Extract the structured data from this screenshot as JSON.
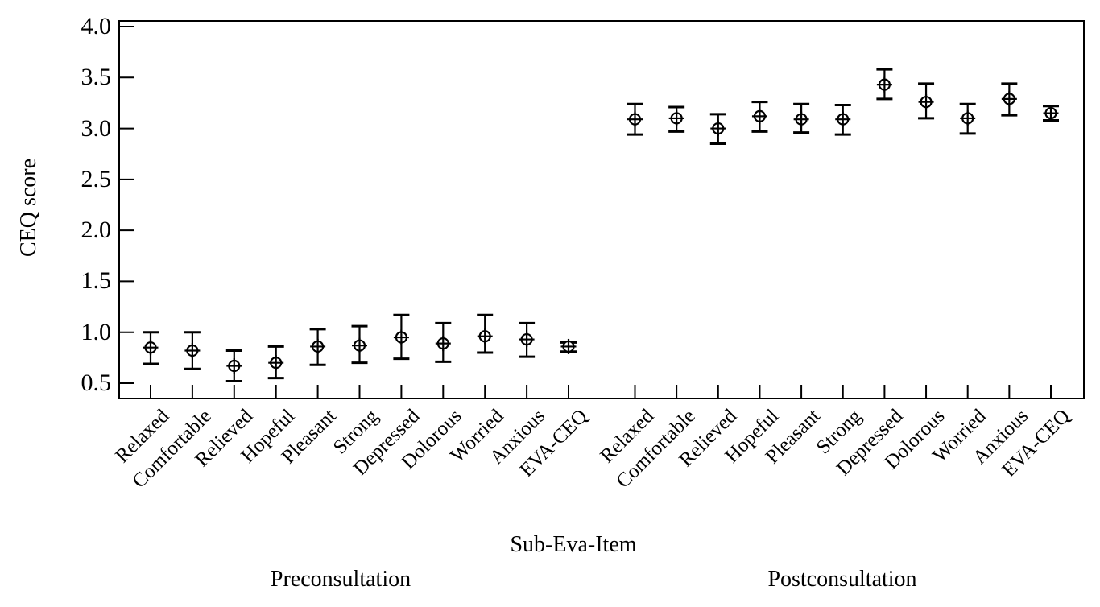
{
  "figure": {
    "background": "#ffffff",
    "ink_color": "#000000",
    "marker_fill": "#ffffff"
  },
  "chart_data": {
    "type": "scatter",
    "title": "",
    "xlabel": "Sub-Eva-Item",
    "ylabel": "CEQ score",
    "ylim": [
      0.34,
      4.06
    ],
    "yticks": [
      4.0,
      3.5,
      3.0,
      2.5,
      2.0,
      1.5,
      1.0,
      0.5
    ],
    "ytick_labels": [
      "4.0",
      "3.5",
      "3.0",
      "2.5",
      "2.0",
      "1.5",
      "1.0",
      "0.5"
    ],
    "marker": "circle-plus",
    "error_caps": true,
    "grid": false,
    "legend": "none",
    "groups": [
      {
        "name": "Preconsultation",
        "categories": [
          "Relaxed",
          "Comfortable",
          "Relieved",
          "Hopeful",
          "Pleasant",
          "Strong",
          "Depressed",
          "Dolorous",
          "Worried",
          "Anxious",
          "EVA-CEQ"
        ],
        "values": [
          0.85,
          0.82,
          0.67,
          0.7,
          0.86,
          0.87,
          0.95,
          0.89,
          0.96,
          0.93,
          0.86
        ],
        "err_low": [
          0.69,
          0.64,
          0.52,
          0.55,
          0.68,
          0.7,
          0.74,
          0.71,
          0.8,
          0.76,
          0.81
        ],
        "err_high": [
          1.0,
          1.0,
          0.82,
          0.86,
          1.03,
          1.06,
          1.17,
          1.09,
          1.17,
          1.09,
          0.9
        ]
      },
      {
        "name": "Postconsultation",
        "categories": [
          "Relaxed",
          "Comfortable",
          "Relieved",
          "Hopeful",
          "Pleasant",
          "Strong",
          "Depressed",
          "Dolorous",
          "Worried",
          "Anxious",
          "EVA-CEQ"
        ],
        "values": [
          3.09,
          3.1,
          3.0,
          3.12,
          3.09,
          3.09,
          3.43,
          3.26,
          3.1,
          3.29,
          3.15
        ],
        "err_low": [
          2.94,
          2.97,
          2.85,
          2.97,
          2.96,
          2.94,
          3.29,
          3.1,
          2.95,
          3.13,
          3.08
        ],
        "err_high": [
          3.24,
          3.21,
          3.14,
          3.26,
          3.24,
          3.23,
          3.58,
          3.44,
          3.24,
          3.44,
          3.22
        ]
      }
    ]
  }
}
